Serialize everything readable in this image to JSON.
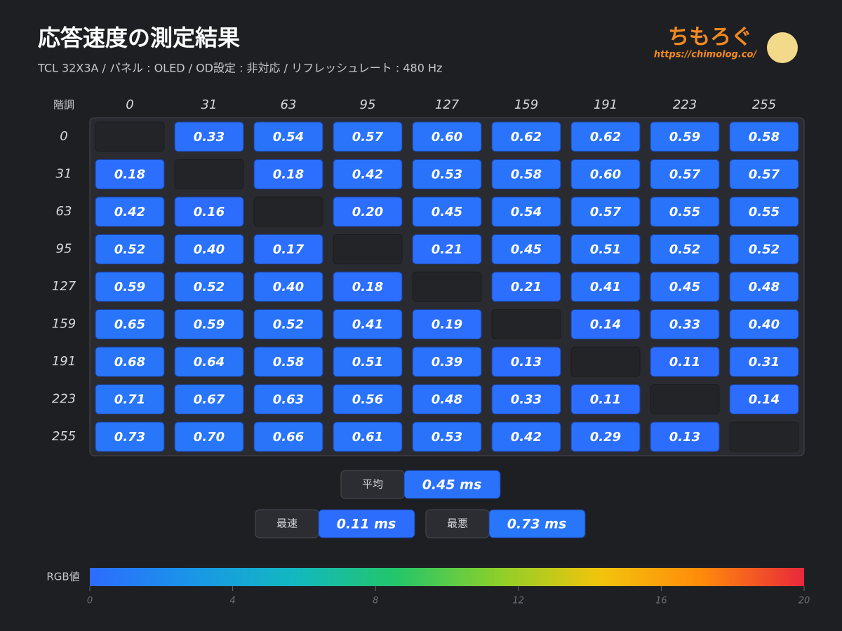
{
  "chart_data": {
    "type": "heatmap",
    "title": "応答速度の測定結果",
    "subtitle": "TCL 32X3A / パネル : OLED / OD設定 : 非対応 / リフレッシュレート : 480 Hz",
    "brand": "ちもろぐ",
    "brand_url": "https://chimolog.co/",
    "corner_label": "階調",
    "x_categories": [
      "0",
      "31",
      "63",
      "95",
      "127",
      "159",
      "191",
      "223",
      "255"
    ],
    "y_categories": [
      "0",
      "31",
      "63",
      "95",
      "127",
      "159",
      "191",
      "223",
      "255"
    ],
    "values": [
      [
        null,
        0.33,
        0.54,
        0.57,
        0.6,
        0.62,
        0.62,
        0.59,
        0.58
      ],
      [
        0.18,
        null,
        0.18,
        0.42,
        0.53,
        0.58,
        0.6,
        0.57,
        0.57
      ],
      [
        0.42,
        0.16,
        null,
        0.2,
        0.45,
        0.54,
        0.57,
        0.55,
        0.55
      ],
      [
        0.52,
        0.4,
        0.17,
        null,
        0.21,
        0.45,
        0.51,
        0.52,
        0.52
      ],
      [
        0.59,
        0.52,
        0.4,
        0.18,
        null,
        0.21,
        0.41,
        0.45,
        0.48
      ],
      [
        0.65,
        0.59,
        0.52,
        0.41,
        0.19,
        null,
        0.14,
        0.33,
        0.4
      ],
      [
        0.68,
        0.64,
        0.58,
        0.51,
        0.39,
        0.13,
        null,
        0.11,
        0.31
      ],
      [
        0.71,
        0.67,
        0.63,
        0.56,
        0.48,
        0.33,
        0.11,
        null,
        0.14
      ],
      [
        0.73,
        0.7,
        0.66,
        0.61,
        0.53,
        0.42,
        0.29,
        0.13,
        null
      ]
    ],
    "value_labels": [
      [
        null,
        "0.33",
        "0.54",
        "0.57",
        "0.60",
        "0.62",
        "0.62",
        "0.59",
        "0.58"
      ],
      [
        "0.18",
        null,
        "0.18",
        "0.42",
        "0.53",
        "0.58",
        "0.60",
        "0.57",
        "0.57"
      ],
      [
        "0.42",
        "0.16",
        null,
        "0.20",
        "0.45",
        "0.54",
        "0.57",
        "0.55",
        "0.55"
      ],
      [
        "0.52",
        "0.40",
        "0.17",
        null,
        "0.21",
        "0.45",
        "0.51",
        "0.52",
        "0.52"
      ],
      [
        "0.59",
        "0.52",
        "0.40",
        "0.18",
        null,
        "0.21",
        "0.41",
        "0.45",
        "0.48"
      ],
      [
        "0.65",
        "0.59",
        "0.52",
        "0.41",
        "0.19",
        null,
        "0.14",
        "0.33",
        "0.40"
      ],
      [
        "0.68",
        "0.64",
        "0.58",
        "0.51",
        "0.39",
        "0.13",
        null,
        "0.11",
        "0.31"
      ],
      [
        "0.71",
        "0.67",
        "0.63",
        "0.56",
        "0.48",
        "0.33",
        "0.11",
        null,
        "0.14"
      ],
      [
        "0.73",
        "0.70",
        "0.66",
        "0.61",
        "0.53",
        "0.42",
        "0.29",
        "0.13",
        null
      ]
    ],
    "summary": [
      {
        "name": "平均",
        "value": 0.45,
        "value_label": "0.45 ms"
      },
      {
        "name": "最速",
        "value": 0.11,
        "value_label": "0.11 ms"
      },
      {
        "name": "最悪",
        "value": 0.73,
        "value_label": "0.73 ms"
      }
    ],
    "colorbar": {
      "label": "RGB値",
      "lim": [
        0,
        20
      ],
      "ticks": [
        0,
        4,
        8,
        12,
        16,
        20
      ],
      "colors": [
        "#2d6bff",
        "#1996e8",
        "#12b8c0",
        "#22c66a",
        "#8ccf2a",
        "#f2c40c",
        "#ff8a0a",
        "#e8283a"
      ]
    }
  }
}
